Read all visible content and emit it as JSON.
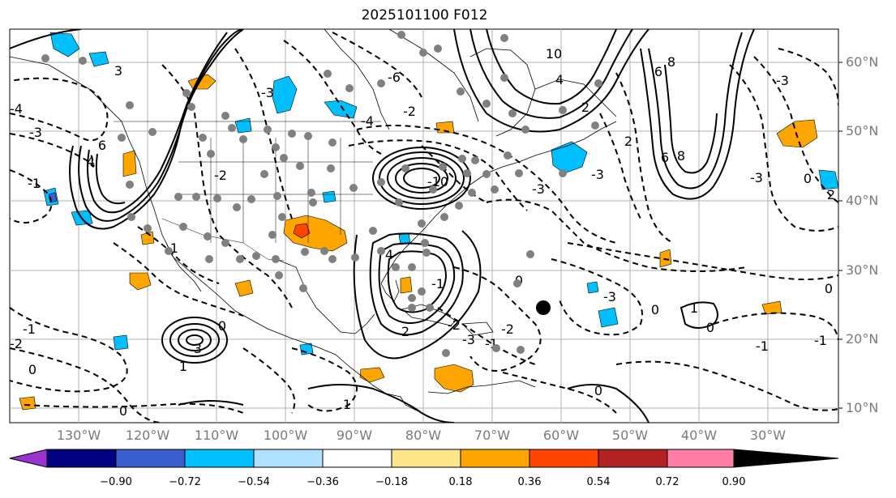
{
  "title": "2025101100 F012",
  "lat_labels": [
    "60°N",
    "50°N",
    "40°N",
    "30°N",
    "20°N",
    "10°N"
  ],
  "lon_labels": [
    "130°W",
    "120°W",
    "110°W",
    "100°W",
    "90°W",
    "80°W",
    "70°W",
    "60°W",
    "50°W",
    "40°W",
    "30°W"
  ],
  "colorbar": {
    "ticks": [
      "−0.90",
      "−0.72",
      "−0.54",
      "−0.36",
      "−0.18",
      "0.18",
      "0.36",
      "0.54",
      "0.72",
      "0.90"
    ],
    "colors": [
      "#9a32cd",
      "#000080",
      "#3a5fcd",
      "#00bfff",
      "#b0e2ff",
      "#ffffff",
      "#fee58c",
      "#ffa500",
      "#ff4500",
      "#b22222",
      "#ff7fa8"
    ]
  },
  "map": {
    "fill_colors": {
      "orange": "#ffa500",
      "red": "#ff4500",
      "cyan": "#00bfff",
      "blue": "#3a5fcd",
      "gray_dot": "#808080"
    },
    "contour_labels": [
      "-4",
      "-3",
      "-2",
      "-1",
      "0",
      "1",
      "2",
      "3",
      "4",
      "6",
      "8",
      "10"
    ]
  }
}
